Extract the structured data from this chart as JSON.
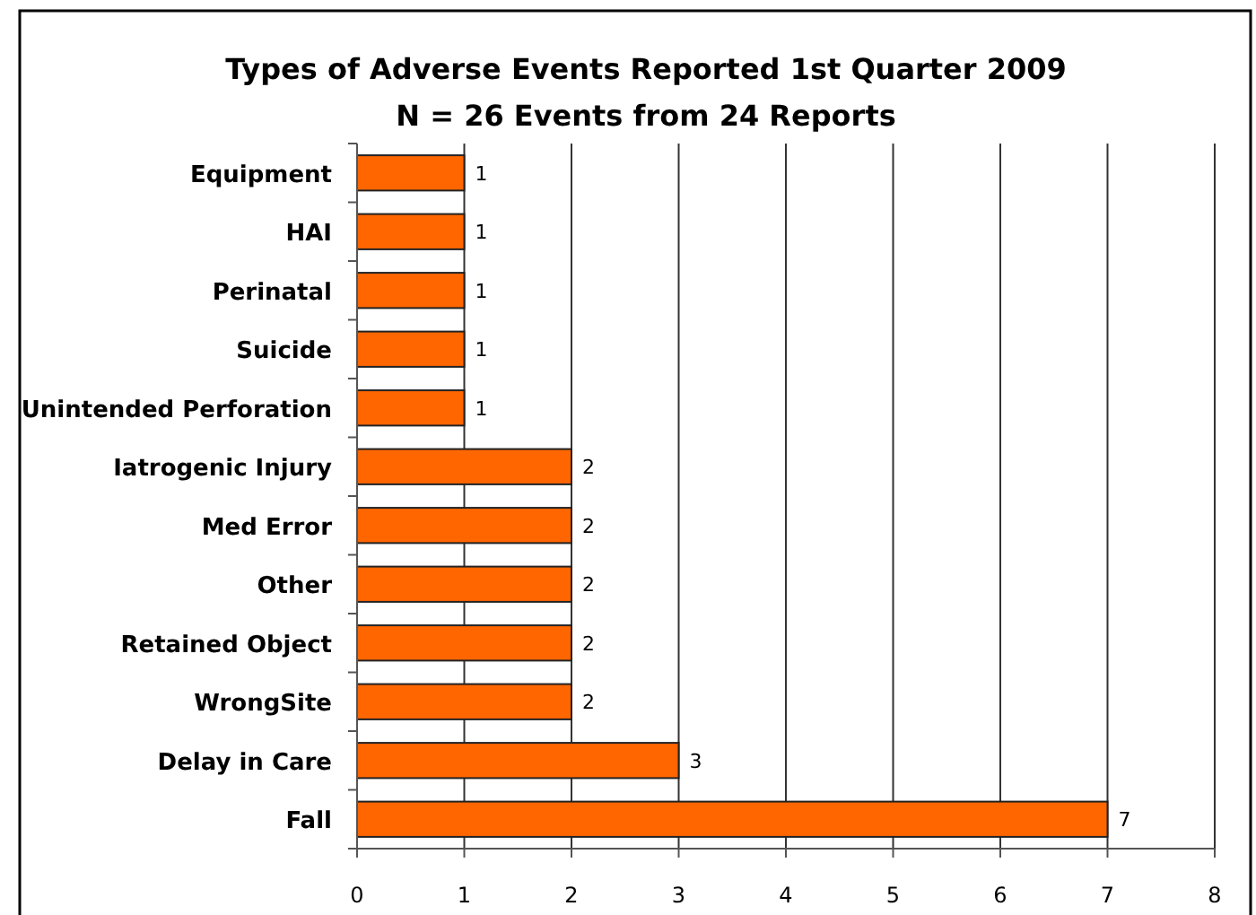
{
  "chart_data": {
    "type": "bar",
    "orientation": "horizontal",
    "title": "Types of Adverse Events Reported 1st Quarter 2009",
    "subtitle": "N = 26 Events from 24 Reports",
    "categories": [
      "Equipment",
      "HAI",
      "Perinatal",
      "Suicide",
      "Unintended Perforation",
      "Iatrogenic Injury",
      "Med Error",
      "Other",
      "Retained Object",
      "WrongSite",
      "Delay in Care",
      "Fall"
    ],
    "values": [
      1,
      1,
      1,
      1,
      1,
      2,
      2,
      2,
      2,
      2,
      3,
      7
    ],
    "color": "#ff6600",
    "xlim": [
      0,
      8
    ],
    "xticks": [
      0,
      1,
      2,
      3,
      4,
      5,
      6,
      7,
      8
    ],
    "grid": "x",
    "data_labels": true
  }
}
